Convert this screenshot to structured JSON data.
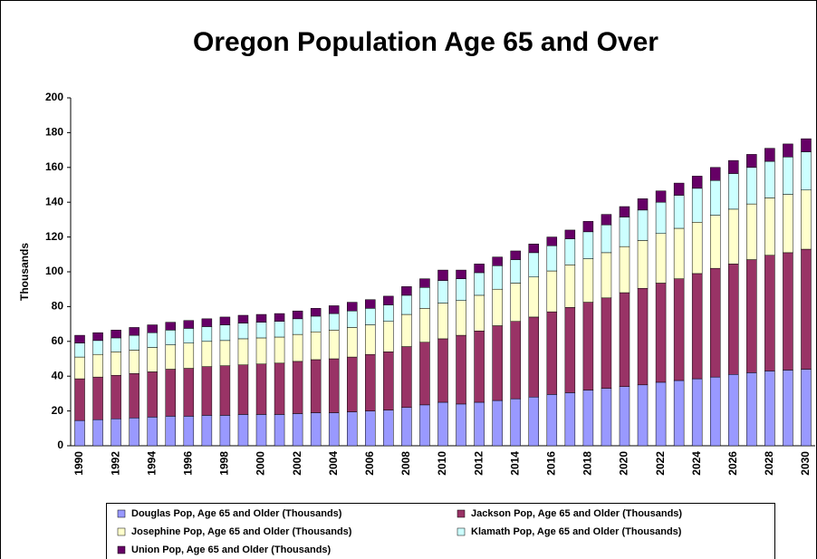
{
  "chart_data": {
    "type": "stacked_bar",
    "title": "Oregon Population Age 65 and Over",
    "y_label": "Thousands",
    "categories": [
      1990,
      null,
      1992,
      null,
      1994,
      null,
      1996,
      null,
      1998,
      null,
      2000,
      null,
      2002,
      null,
      2004,
      null,
      2006,
      null,
      2008,
      null,
      2010,
      null,
      2012,
      null,
      2014,
      null,
      2016,
      null,
      2018,
      null,
      2020,
      null,
      2022,
      null,
      2024,
      null,
      2026,
      null,
      2028,
      null,
      2030
    ],
    "series": [
      {
        "name": "Douglas Pop, Age 65 and Older (Thousands)",
        "color": "#9999ff",
        "values": [
          14.5,
          15,
          15.5,
          16,
          16.5,
          17,
          17,
          17.5,
          17.5,
          18,
          18,
          18,
          18.5,
          19,
          19,
          19.5,
          20,
          20.5,
          22,
          23.5,
          25,
          24,
          25,
          26,
          27,
          28,
          29.5,
          30.5,
          32,
          33,
          34,
          35,
          36.5,
          37.5,
          38.5,
          39.5,
          41,
          42,
          43,
          43.5,
          44
        ]
      },
      {
        "name": "Jackson Pop, Age 65 and Older (Thousands)",
        "color": "#993366",
        "values": [
          24,
          24.5,
          25,
          25.5,
          26,
          27,
          27.5,
          28,
          28.5,
          28.5,
          29,
          29.5,
          30,
          30.5,
          31,
          31.5,
          32.5,
          33.5,
          35,
          36,
          36.5,
          39.5,
          41,
          43,
          44.5,
          46,
          47.5,
          49,
          50.5,
          52,
          54,
          55.5,
          57,
          58.5,
          60.5,
          62.5,
          63.5,
          65,
          66.5,
          67.5,
          69
        ]
      },
      {
        "name": "Josephine Pop, Age 65 and Older (Thousands)",
        "color": "#ffffcc",
        "values": [
          12.5,
          13,
          13.5,
          13.5,
          14,
          14,
          14.5,
          14.5,
          14.5,
          15,
          15,
          15,
          15.5,
          16,
          16.5,
          17,
          17,
          17.5,
          18.5,
          19.5,
          20.5,
          20,
          20.5,
          21,
          22,
          23,
          23.5,
          24.5,
          25,
          26,
          26.5,
          27.5,
          28.5,
          29,
          29.5,
          30.5,
          31.5,
          32,
          33,
          33.5,
          34
        ]
      },
      {
        "name": "Klamath Pop, Age 65 and Older (Thousands)",
        "color": "#ccffff",
        "values": [
          8,
          8,
          8,
          8.5,
          8.5,
          8.5,
          8.5,
          8.5,
          9,
          9,
          9,
          9,
          9,
          9,
          9.5,
          9.5,
          9.5,
          9.5,
          11,
          12,
          13,
          12.5,
          13,
          13.5,
          13.5,
          14,
          14.5,
          15,
          15.5,
          16,
          17,
          17.5,
          18,
          19,
          19.5,
          20,
          20.5,
          21,
          21,
          21.5,
          22
        ]
      },
      {
        "name": "Union Pop, Age 65 and Older (Thousands)",
        "color": "#660066",
        "values": [
          4.5,
          4.5,
          4.5,
          4.5,
          4.5,
          4.5,
          4.5,
          4.5,
          4.5,
          4.5,
          4.5,
          4.5,
          4.5,
          4.5,
          4.5,
          5,
          5,
          5,
          5,
          5,
          6,
          5,
          5,
          5,
          5,
          5,
          5,
          5,
          6,
          6,
          6,
          6.5,
          6.5,
          7,
          7,
          7.5,
          7.5,
          7.5,
          7.5,
          7.5,
          7.5
        ]
      }
    ],
    "ylim": [
      0,
      200
    ],
    "yticks": [
      0,
      20,
      40,
      60,
      80,
      100,
      120,
      140,
      160,
      180,
      200
    ]
  }
}
